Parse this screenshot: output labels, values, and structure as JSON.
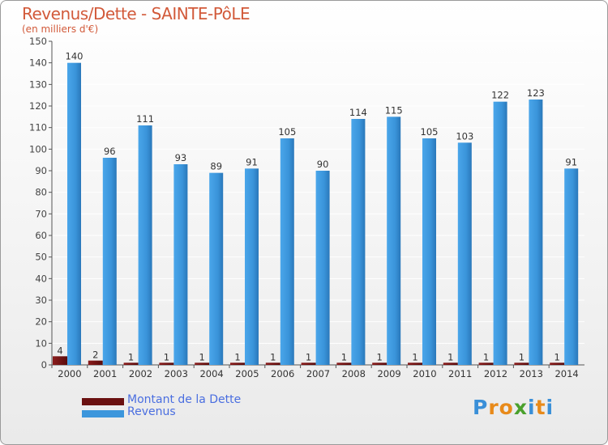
{
  "title": "Revenus/Dette - SAINTE-PôLE",
  "subtitle": "(en milliers d'€)",
  "logo_text": "Proxiti",
  "colors": {
    "debt": "#7a1414",
    "revenue": "#3c96dc",
    "revenue_dark": "#2a7cc0",
    "title": "#d25a3a",
    "legend": "#4a6ee0"
  },
  "chart_data": {
    "type": "bar",
    "title": "Revenus/Dette - SAINTE-PôLE",
    "ylabel": "(en milliers d'€)",
    "xlabel": "",
    "categories": [
      "2000",
      "2001",
      "2002",
      "2003",
      "2004",
      "2005",
      "2006",
      "2007",
      "2008",
      "2009",
      "2010",
      "2011",
      "2012",
      "2013",
      "2014"
    ],
    "series": [
      {
        "name": "Montant de la Dette",
        "values": [
          4,
          2,
          1,
          1,
          1,
          1,
          1,
          1,
          1,
          1,
          1,
          1,
          1,
          1,
          1
        ]
      },
      {
        "name": "Revenus",
        "values": [
          140,
          96,
          111,
          93,
          89,
          91,
          105,
          90,
          114,
          115,
          105,
          103,
          122,
          123,
          91
        ]
      }
    ],
    "ylim": [
      0,
      150
    ],
    "yticks": [
      0,
      10,
      20,
      30,
      40,
      50,
      60,
      70,
      80,
      90,
      100,
      110,
      120,
      130,
      140,
      150
    ],
    "grid": true,
    "legend_position": "bottom-left"
  }
}
